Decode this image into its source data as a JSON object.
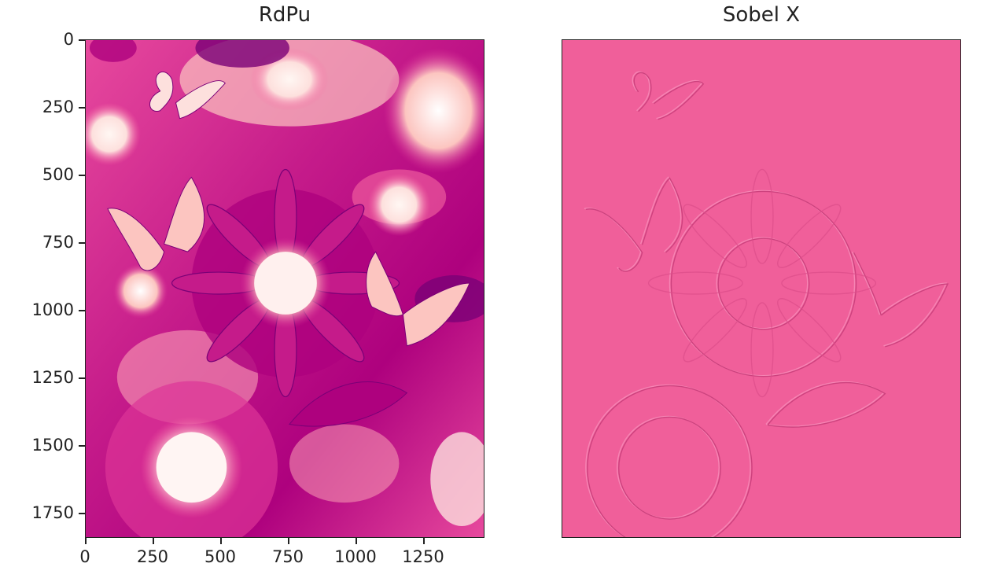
{
  "panels": [
    {
      "title": "RdPu",
      "y_ticks": [
        "0",
        "250",
        "500",
        "750",
        "1000",
        "1250",
        "1500",
        "1750"
      ],
      "x_ticks": [
        "0",
        "250",
        "500",
        "750",
        "1000",
        "1250"
      ]
    },
    {
      "title": "Sobel X"
    }
  ],
  "colors": {
    "rdpu_light": "#fde0dd",
    "rdpu_mid": "#dd3497",
    "rdpu_dark": "#7a0177",
    "sobel_base": "#f05f9a",
    "sobel_edge_light": "#f88cb9",
    "sobel_edge_dark": "#c83d7a"
  }
}
